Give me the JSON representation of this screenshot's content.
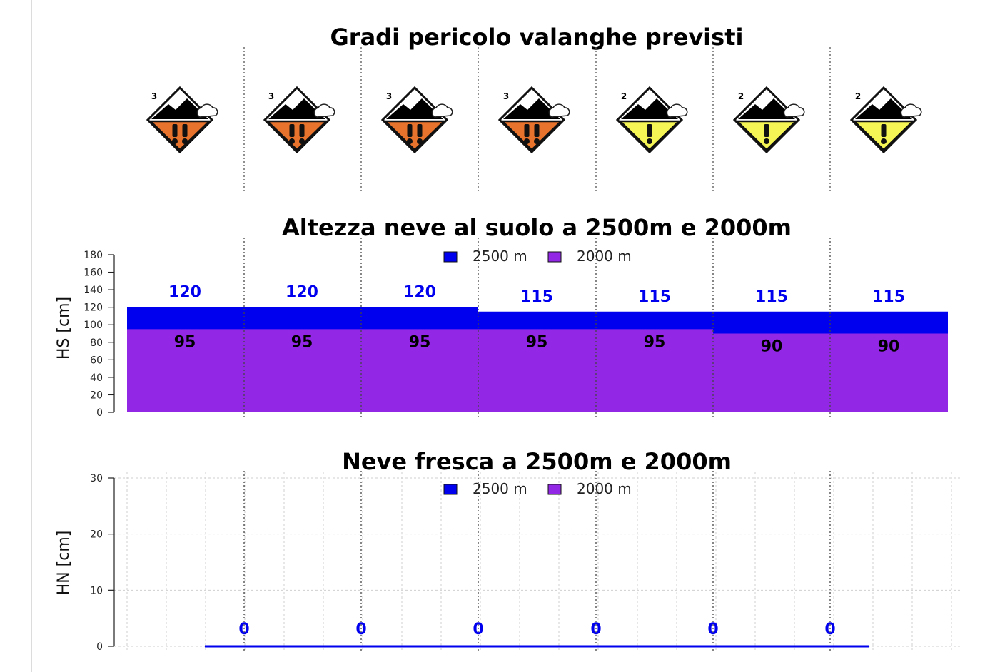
{
  "chart_data": [
    {
      "type": "icon-strip",
      "title": "Gradi pericolo valanghe previsti",
      "levels": [
        3,
        3,
        3,
        3,
        2,
        2,
        2
      ],
      "level_colors": {
        "2": "#f5f556",
        "3": "#e8732c"
      },
      "icons": [
        "avalanche-danger-level-3-icon",
        "avalanche-danger-level-3-icon",
        "avalanche-danger-level-3-icon",
        "avalanche-danger-level-3-icon",
        "avalanche-danger-level-2-icon",
        "avalanche-danger-level-2-icon",
        "avalanche-danger-level-2-icon"
      ]
    },
    {
      "type": "area",
      "title": "Altezza neve al suolo a 2500m e 2000m",
      "ylabel": "HS [cm]",
      "ylim": [
        0,
        180
      ],
      "yticks": [
        0,
        20,
        40,
        60,
        80,
        100,
        120,
        140,
        160,
        180
      ],
      "legend_position": "top-center",
      "series": [
        {
          "name": "2500 m",
          "color": "#0000ee",
          "label_color": "#0000ee",
          "values": [
            120,
            120,
            120,
            115,
            115,
            115,
            115
          ]
        },
        {
          "name": "2000 m",
          "color": "#9228e6",
          "label_color": "#000000",
          "values": [
            95,
            95,
            95,
            95,
            95,
            90,
            90
          ]
        }
      ],
      "grid": false
    },
    {
      "type": "line",
      "title": "Neve fresca a 2500m e 2000m",
      "ylabel": "HN [cm]",
      "ylim": [
        0,
        30
      ],
      "yticks": [
        0,
        10,
        20,
        30
      ],
      "legend_position": "top-center",
      "series": [
        {
          "name": "2500 m",
          "color": "#0000ee",
          "values": [
            0,
            0,
            0,
            0,
            0,
            0
          ]
        },
        {
          "name": "2000 m",
          "color": "#9228e6",
          "values": [
            0,
            0,
            0,
            0,
            0,
            0
          ]
        }
      ],
      "grid": true
    }
  ]
}
